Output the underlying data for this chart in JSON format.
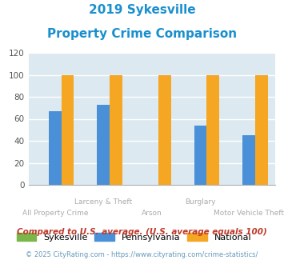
{
  "title_line1": "2019 Sykesville",
  "title_line2": "Property Crime Comparison",
  "title_color": "#1a8fce",
  "categories": [
    "All Property Crime",
    "Larceny & Theft",
    "Arson",
    "Burglary",
    "Motor Vehicle Theft"
  ],
  "cat_labels_row1": [
    "",
    "Larceny & Theft",
    "",
    "Burglary",
    ""
  ],
  "cat_labels_row2": [
    "All Property Crime",
    "",
    "Arson",
    "",
    "Motor Vehicle Theft"
  ],
  "sykesville": [
    0,
    0,
    0,
    0,
    0
  ],
  "pennsylvania": [
    67,
    73,
    0,
    54,
    45
  ],
  "national": [
    100,
    100,
    100,
    100,
    100
  ],
  "sykesville_color": "#7ab648",
  "pennsylvania_color": "#4a90d9",
  "national_color": "#f5a623",
  "ylim": [
    0,
    120
  ],
  "yticks": [
    0,
    20,
    40,
    60,
    80,
    100,
    120
  ],
  "plot_bg_color": "#dce9f0",
  "grid_color": "#ffffff",
  "legend_labels": [
    "Sykesville",
    "Pennsylvania",
    "National"
  ],
  "footnote1": "Compared to U.S. average. (U.S. average equals 100)",
  "footnote2": "© 2025 CityRating.com - https://www.cityrating.com/crime-statistics/",
  "footnote1_color": "#c0392b",
  "footnote2_color": "#6699bb"
}
